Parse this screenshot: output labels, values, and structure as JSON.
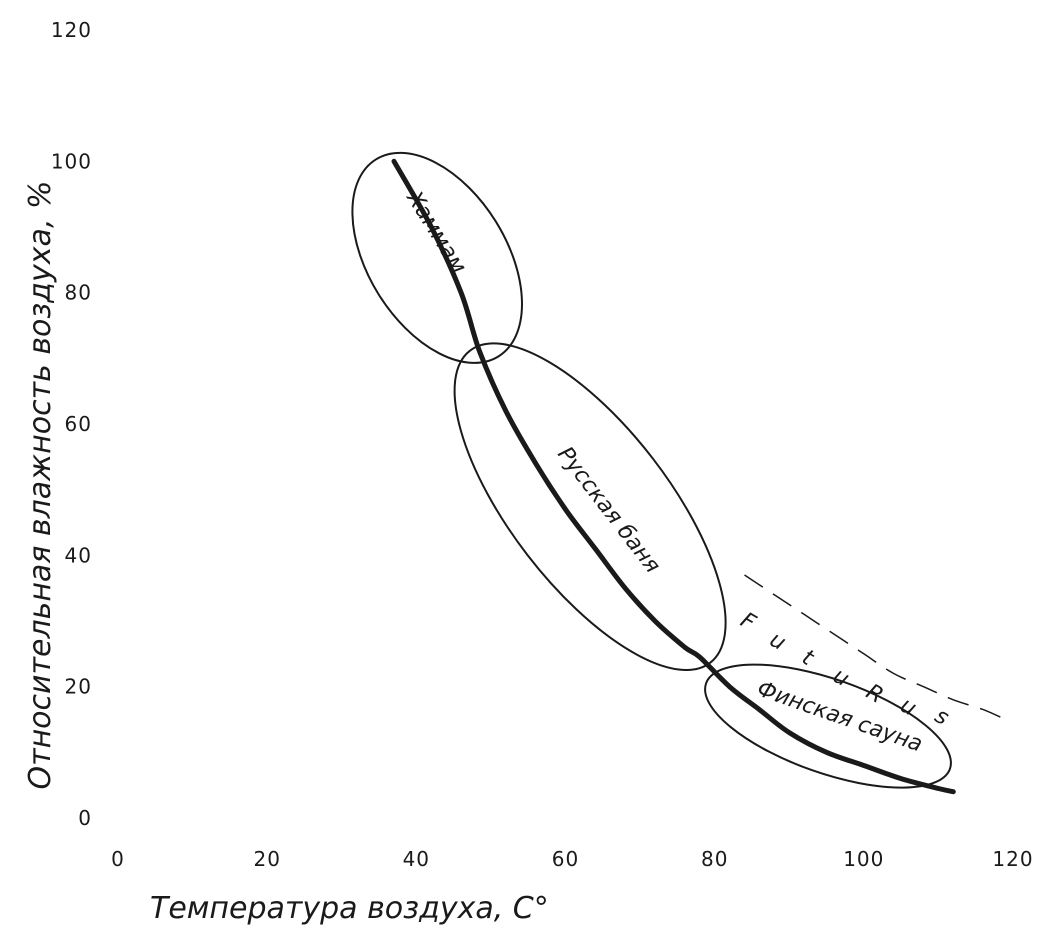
{
  "chart_data": {
    "type": "line",
    "title": "",
    "xlabel": "Температура воздуха, С°",
    "ylabel": "Относительная влажность воздуха, %",
    "xlim": [
      0,
      120
    ],
    "ylim": [
      0,
      120
    ],
    "x_ticks": [
      "0",
      "20",
      "40",
      "60",
      "80",
      "100",
      "120"
    ],
    "y_ticks": [
      "0",
      "20",
      "40",
      "60",
      "80",
      "100",
      "120"
    ],
    "grid": false,
    "legend": "none",
    "series": [
      {
        "x": [
          37,
          42,
          46,
          48.5,
          52,
          56,
          60,
          64,
          68,
          72,
          76,
          78,
          82,
          86,
          90,
          95,
          100,
          105,
          110,
          112
        ],
        "y": [
          100,
          90,
          80,
          71,
          62,
          54,
          47,
          41,
          35,
          30,
          26,
          24.5,
          20,
          16.5,
          13,
          10,
          8,
          6,
          4.5,
          4
        ]
      }
    ],
    "zones": [
      {
        "label": "Хаммам",
        "center": [
          42.8,
          85.3
        ],
        "semi_major": 17.1,
        "semi_minor": 9.5,
        "angle_deg": 61.3
      },
      {
        "label": "Русская баня",
        "center": [
          63.3,
          47.4
        ],
        "semi_major": 28.7,
        "semi_minor": 11.0,
        "angle_deg": 55.9
      },
      {
        "label": "Финская сауна",
        "center": [
          95.2,
          14.0
        ],
        "semi_major": 17.6,
        "semi_minor": 7.0,
        "angle_deg": 21.7
      }
    ],
    "annotations": [
      {
        "text": "FutuRus",
        "letters": [
          "F",
          "u",
          "t",
          "u",
          "R",
          "u",
          "s"
        ],
        "style": "dashed-curve"
      }
    ],
    "futurus_curve": {
      "x": [
        84,
        88,
        92,
        96,
        100,
        104,
        108,
        112,
        116,
        119
      ],
      "y": [
        37,
        34,
        31,
        28,
        25,
        22,
        20,
        18,
        16.5,
        15
      ]
    },
    "colors": {
      "ink": "#1a1a1a",
      "background": "#ffffff"
    }
  }
}
